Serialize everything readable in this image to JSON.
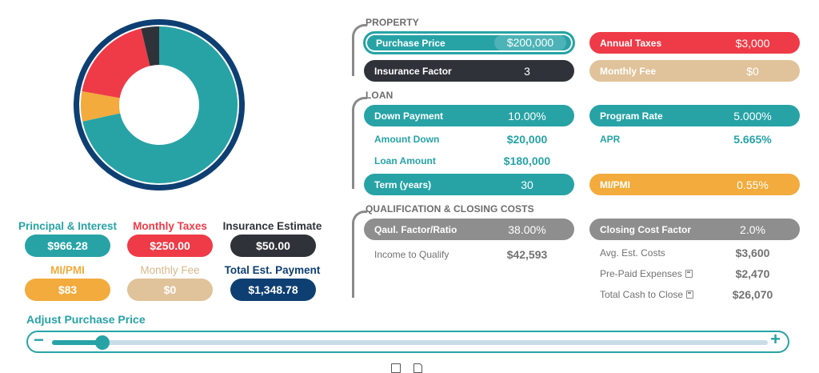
{
  "colors": {
    "teal": "#27a3a6",
    "red": "#ef3b47",
    "dark": "#2f3339",
    "tan": "#e0c39a",
    "orange": "#f2ab3c",
    "navy": "#0e3f73",
    "gray": "#8e8e8e"
  },
  "summary": {
    "principal_label": "Principal & Interest",
    "principal_value": "$966.28",
    "taxes_label": "Monthly Taxes",
    "taxes_value": "$250.00",
    "insurance_label": "Insurance Estimate",
    "insurance_value": "$50.00",
    "mipmi_label": "MI/PMI",
    "mipmi_value": "$83",
    "fee_label": "Monthly Fee",
    "fee_value": "$0",
    "total_label": "Total Est. Payment",
    "total_value": "$1,348.78"
  },
  "donut": {
    "segments": [
      {
        "name": "Principal & Interest",
        "value": 966.28,
        "color": "#27a3a6"
      },
      {
        "name": "MI/PMI",
        "value": 83,
        "color": "#f2ab3c"
      },
      {
        "name": "Monthly Taxes",
        "value": 250,
        "color": "#ef3b47"
      },
      {
        "name": "Insurance Estimate",
        "value": 50,
        "color": "#2f3339"
      }
    ],
    "ring_color": "#0e3f73"
  },
  "property": {
    "title": "PROPERTY",
    "purchase_price_label": "Purchase Price",
    "purchase_price_value": "$200,000",
    "annual_taxes_label": "Annual Taxes",
    "annual_taxes_value": "$3,000",
    "insurance_factor_label": "Insurance Factor",
    "insurance_factor_value": "3",
    "monthly_fee_label": "Monthly Fee",
    "monthly_fee_value": "$0"
  },
  "loan": {
    "title": "LOAN",
    "down_payment_label": "Down Payment",
    "down_payment_value": "10.00%",
    "program_rate_label": "Program Rate",
    "program_rate_value": "5.000%",
    "amount_down_label": "Amount Down",
    "amount_down_value": "$20,000",
    "apr_label": "APR",
    "apr_value": "5.665%",
    "loan_amount_label": "Loan Amount",
    "loan_amount_value": "$180,000",
    "term_label": "Term (years)",
    "term_value": "30",
    "mipmi_label": "MI/PMI",
    "mipmi_value": "0.55%"
  },
  "qualification": {
    "title": "QUALIFICATION & CLOSING COSTS",
    "qual_factor_label": "Qaul. Factor/Ratio",
    "qual_factor_value": "38.00%",
    "closing_factor_label": "Closing Cost Factor",
    "closing_factor_value": "2.0%",
    "income_label": "Income to Qualify",
    "income_value": "$42,593",
    "avg_costs_label": "Avg. Est. Costs",
    "avg_costs_value": "$3,600",
    "prepaid_label": "Pre-Paid Expenses",
    "prepaid_value": "$2,470",
    "cash_close_label": "Total Cash to Close",
    "cash_close_value": "$26,070"
  },
  "slider": {
    "label": "Adjust Purchase Price",
    "minus": "−",
    "plus": "+",
    "level": 0.07
  }
}
